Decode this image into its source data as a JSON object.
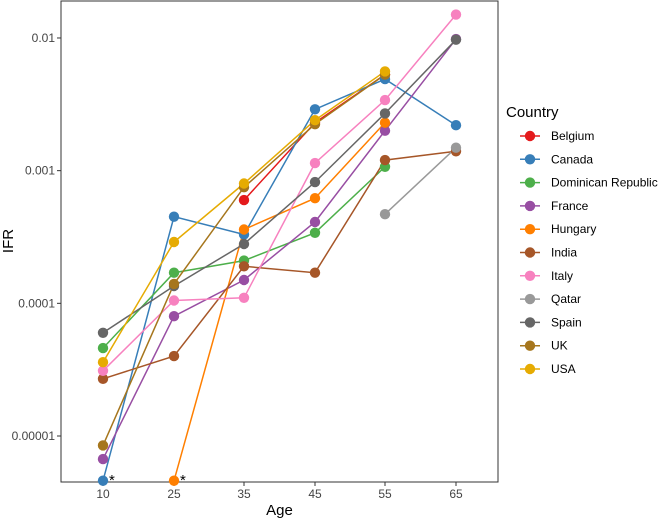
{
  "chart_data": {
    "type": "line",
    "title": "",
    "xlabel": "Age",
    "ylabel": "IFR",
    "yscale": "log",
    "ylim": [
      4.5e-06,
      0.019
    ],
    "grid": false,
    "legend_position": "right",
    "legend_title": "Country",
    "categories": [
      "10",
      "25",
      "35",
      "45",
      "55",
      "65"
    ],
    "ytick_labels": [
      "0.00001",
      "0.0001",
      "0.001",
      "0.01"
    ],
    "yticks": [
      1e-05,
      0.0001,
      0.001,
      0.01
    ],
    "annotations": [
      "*",
      "*"
    ],
    "series": [
      {
        "name": "Belgium",
        "color": "#E41A1C",
        "values": [
          null,
          null,
          0.0006,
          0.0023,
          0.0053,
          null
        ]
      },
      {
        "name": "Canada",
        "color": "#377EB8",
        "values": [
          4.6e-06,
          0.00045,
          0.00033,
          0.0029,
          0.0049,
          0.0022
        ]
      },
      {
        "name": "Dominican Republic",
        "color": "#4DAF4A",
        "values": [
          4.6e-05,
          0.00017,
          0.00021,
          0.00034,
          0.00107,
          null
        ]
      },
      {
        "name": "France",
        "color": "#984EA3",
        "values": [
          6.7e-06,
          8e-05,
          0.00015,
          0.00041,
          0.002,
          0.0098
        ]
      },
      {
        "name": "Hungary",
        "color": "#FF7F00",
        "values": [
          null,
          4.6e-06,
          0.00036,
          0.00062,
          0.0023,
          null
        ]
      },
      {
        "name": "India",
        "color": "#A65628",
        "values": [
          2.7e-05,
          4e-05,
          0.00019,
          0.00017,
          0.0012,
          0.0014
        ]
      },
      {
        "name": "Italy",
        "color": "#F781BF",
        "values": [
          3.1e-05,
          0.000105,
          0.00011,
          0.00114,
          0.0034,
          0.015
        ]
      },
      {
        "name": "Qatar",
        "color": "#999999",
        "values": [
          null,
          null,
          null,
          null,
          0.00047,
          0.00149
        ]
      },
      {
        "name": "Spain",
        "color": "#666666",
        "values": [
          6e-05,
          0.000135,
          0.00028,
          0.00082,
          0.0027,
          0.0097
        ]
      },
      {
        "name": "UK",
        "color": "#A6761D",
        "values": [
          8.5e-06,
          0.00014,
          0.00075,
          0.00224,
          0.0053,
          null
        ]
      },
      {
        "name": "USA",
        "color": "#E6AB02",
        "values": [
          3.6e-05,
          0.00029,
          0.0008,
          0.0024,
          0.0056,
          null
        ]
      }
    ]
  }
}
